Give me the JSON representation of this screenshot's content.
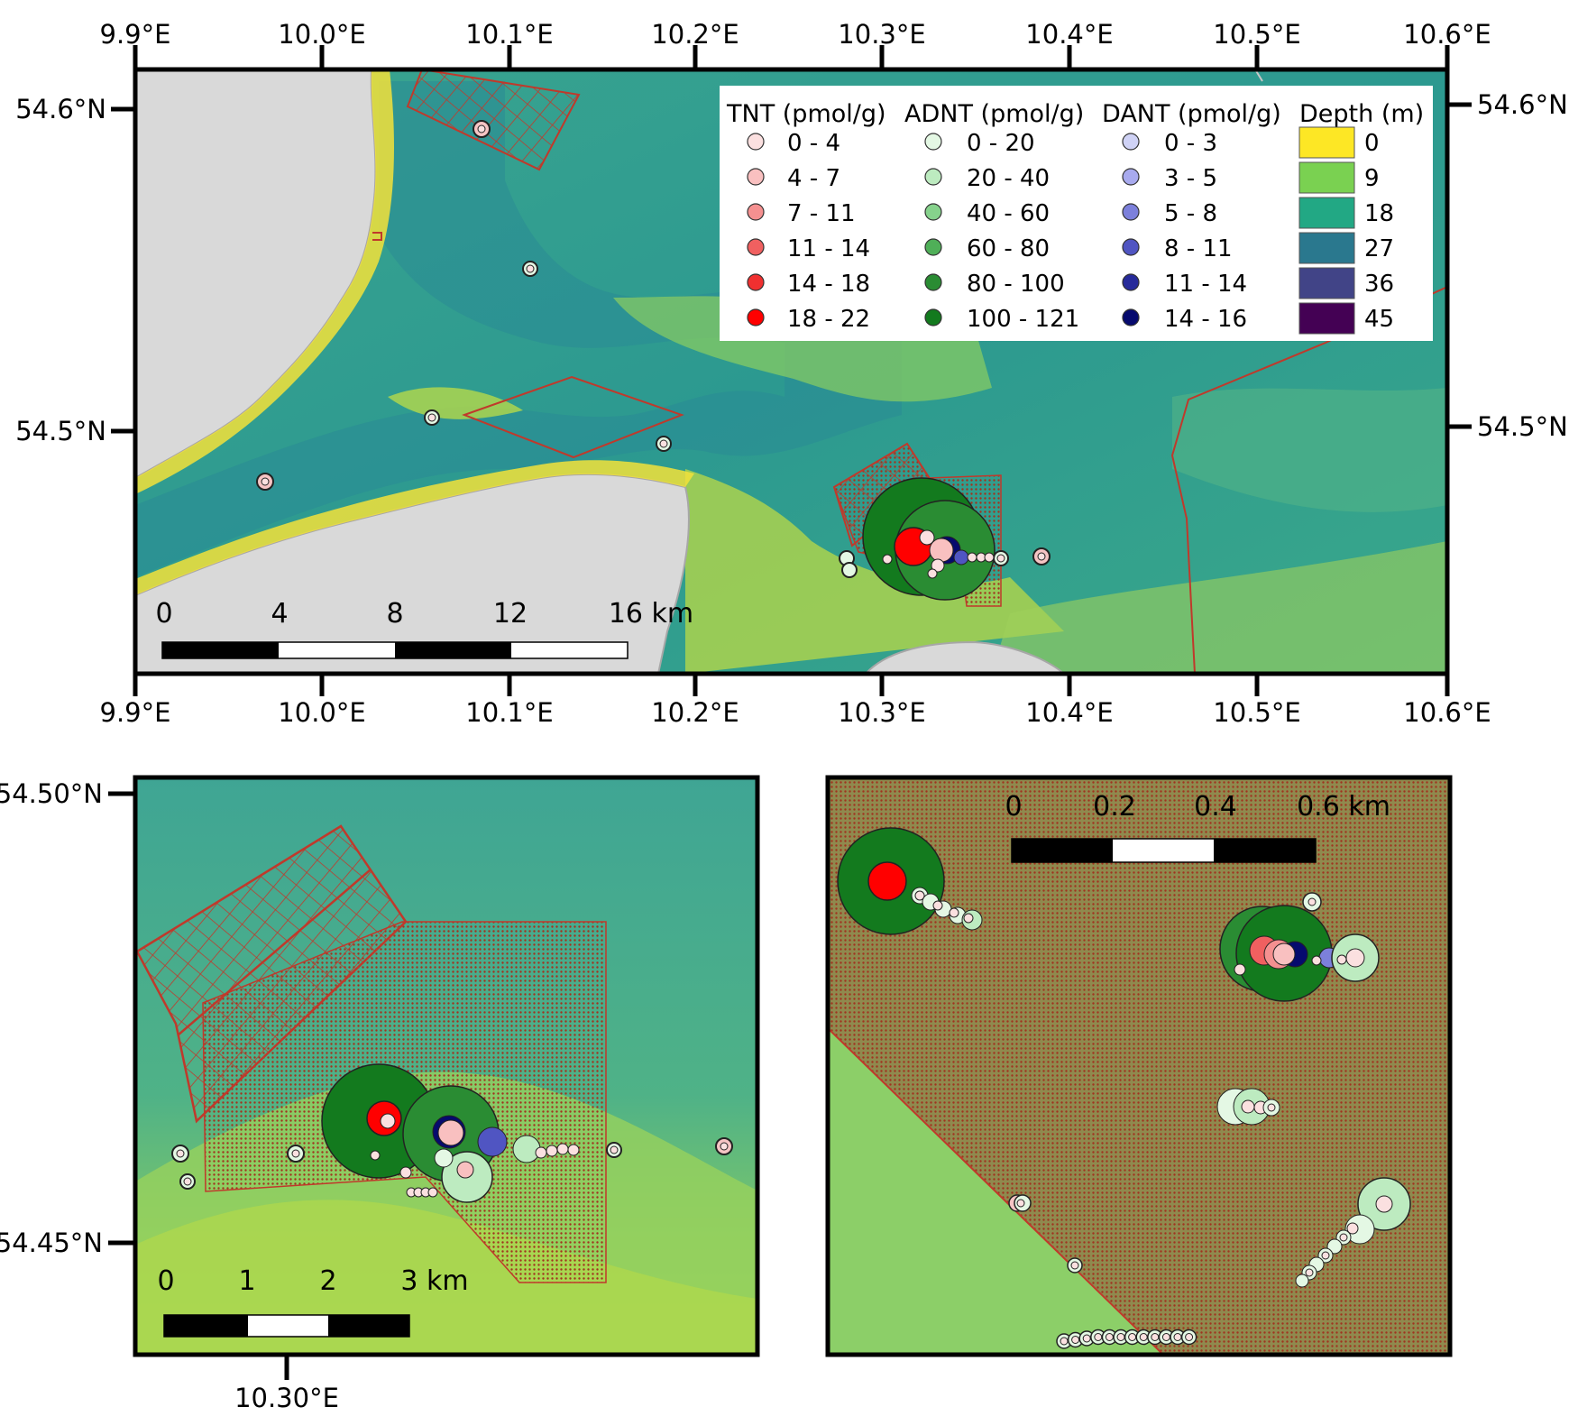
{
  "main_map": {
    "top_axis_labels": [
      "9.9°E",
      "10.0°E",
      "10.1°E",
      "10.2°E",
      "10.3°E",
      "10.4°E",
      "10.5°E",
      "10.6°E"
    ],
    "bottom_axis_labels": [
      "9.9°E",
      "10.0°E",
      "10.1°E",
      "10.2°E",
      "10.3°E",
      "10.4°E",
      "10.5°E",
      "10.6°E"
    ],
    "left_axis_labels": [
      "54.6°N",
      "54.5°N"
    ],
    "right_axis_labels": [
      "54.6°N",
      "54.5°N"
    ],
    "scale_labels": [
      "0",
      "4",
      "8",
      "12",
      "16 km"
    ]
  },
  "legend": {
    "tnt": {
      "title": "TNT (pmol/g)",
      "entries": [
        "0 - 4",
        "4 - 7",
        "7 - 11",
        "11 - 14",
        "14 - 18",
        "18 - 22"
      ],
      "colors": [
        "#fbe0e0",
        "#f9c0c0",
        "#f59090",
        "#f06060",
        "#f03030",
        "#ff0000"
      ]
    },
    "adnt": {
      "title": "ADNT (pmol/g)",
      "entries": [
        "0 - 20",
        "20 - 40",
        "40 - 60",
        "60 - 80",
        "80 - 100",
        "100 - 121"
      ],
      "colors": [
        "#e4f8e4",
        "#bdebc0",
        "#86d28c",
        "#4faf58",
        "#2a8c33",
        "#137a1e"
      ]
    },
    "dant": {
      "title": "DANT (pmol/g)",
      "entries": [
        "0 - 3",
        "3 - 5",
        "5 - 8",
        "8 - 11",
        "11 - 14",
        "14 - 16"
      ],
      "colors": [
        "#cfd2f5",
        "#a8aaee",
        "#7c80db",
        "#5055c2",
        "#262a9a",
        "#060a6e"
      ]
    },
    "depth": {
      "title": "Depth (m)",
      "entries": [
        "0",
        "9",
        "18",
        "27",
        "36",
        "45"
      ],
      "colors": [
        "#fde725",
        "#7ad151",
        "#22a884",
        "#2a788e",
        "#414487",
        "#440154"
      ]
    }
  },
  "inset_left": {
    "left_axis_labels": [
      "54.50°N",
      "54.45°N"
    ],
    "bottom_axis_label": "10.30°E",
    "scale_labels": [
      "0",
      "1",
      "2",
      "3 km"
    ]
  },
  "inset_right": {
    "scale_labels": [
      "0",
      "0.2",
      "0.4",
      "0.6 km"
    ]
  }
}
